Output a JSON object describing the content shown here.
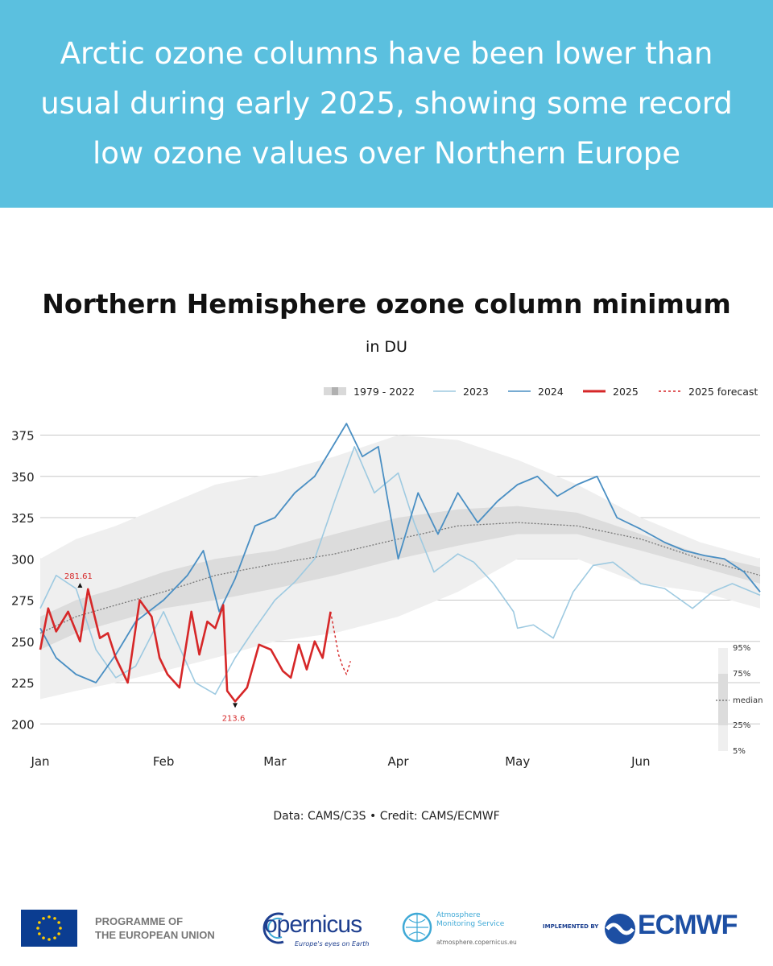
{
  "header": {
    "headline": "Arctic ozone columns have been lower than usual during early 2025, showing some record low ozone values over Northern Europe"
  },
  "chart_data": {
    "type": "line",
    "title": "Northern Hemisphere ozone column minimum",
    "subtitle": "in DU",
    "x_tick_labels": [
      "Jan",
      "Feb",
      "Mar",
      "Apr",
      "May",
      "Jun"
    ],
    "x_tick_days": [
      1,
      32,
      60,
      91,
      121,
      152
    ],
    "xlim": [
      1,
      182
    ],
    "y_ticks": [
      200,
      225,
      250,
      275,
      300,
      325,
      350,
      375
    ],
    "ylim": [
      185,
      385
    ],
    "grid": true,
    "legend_position": "top-right",
    "legend": [
      {
        "label": "1979 - 2022",
        "style": "band",
        "color": "#d9d9d9"
      },
      {
        "label": "2023",
        "style": "line",
        "color": "#9ecae1"
      },
      {
        "label": "2024",
        "style": "line",
        "color": "#4a8fc3"
      },
      {
        "label": "2025",
        "style": "line-bold",
        "color": "#d62728"
      },
      {
        "label": "2025 forecast",
        "style": "dashed",
        "color": "#d62728"
      }
    ],
    "climatology": {
      "name": "1979 - 2022",
      "x": [
        1,
        10,
        20,
        32,
        45,
        60,
        75,
        91,
        106,
        121,
        136,
        152,
        167,
        182
      ],
      "p5": [
        215,
        220,
        225,
        232,
        240,
        250,
        255,
        265,
        280,
        300,
        300,
        285,
        280,
        270
      ],
      "p25": [
        245,
        255,
        262,
        270,
        275,
        282,
        290,
        300,
        308,
        315,
        315,
        305,
        295,
        285
      ],
      "median": [
        255,
        265,
        272,
        280,
        290,
        297,
        303,
        312,
        320,
        322,
        320,
        312,
        300,
        290
      ],
      "p75": [
        265,
        275,
        282,
        292,
        300,
        305,
        315,
        325,
        330,
        332,
        328,
        315,
        303,
        295
      ],
      "p95": [
        300,
        312,
        320,
        332,
        345,
        352,
        362,
        375,
        372,
        360,
        345,
        325,
        310,
        300
      ]
    },
    "series": [
      {
        "name": "2023",
        "color": "#9ecae1",
        "x": [
          1,
          5,
          10,
          15,
          20,
          25,
          32,
          40,
          45,
          50,
          55,
          60,
          65,
          70,
          75,
          80,
          85,
          91,
          95,
          100,
          106,
          110,
          115,
          120,
          121,
          125,
          130,
          135,
          140,
          145,
          152,
          158,
          165,
          170,
          175,
          182
        ],
        "y": [
          270,
          290,
          282,
          245,
          228,
          235,
          268,
          225,
          218,
          240,
          258,
          275,
          286,
          300,
          335,
          368,
          340,
          352,
          322,
          292,
          303,
          298,
          285,
          268,
          258,
          260,
          252,
          280,
          296,
          298,
          285,
          282,
          270,
          280,
          285,
          278
        ]
      },
      {
        "name": "2024",
        "color": "#4a8fc3",
        "x": [
          1,
          5,
          10,
          15,
          20,
          25,
          32,
          38,
          42,
          46,
          50,
          55,
          60,
          65,
          70,
          75,
          78,
          82,
          86,
          91,
          96,
          101,
          106,
          111,
          116,
          121,
          126,
          131,
          136,
          141,
          146,
          152,
          158,
          163,
          168,
          173,
          178,
          182
        ],
        "y": [
          258,
          240,
          230,
          225,
          242,
          262,
          275,
          290,
          305,
          268,
          288,
          320,
          325,
          340,
          350,
          370,
          382,
          362,
          368,
          300,
          340,
          315,
          340,
          322,
          335,
          345,
          350,
          338,
          345,
          350,
          325,
          318,
          310,
          305,
          302,
          300,
          292,
          280
        ]
      },
      {
        "name": "2025",
        "color": "#d62728",
        "x": [
          1,
          3,
          5,
          8,
          11,
          13,
          16,
          18,
          20,
          23,
          26,
          29,
          31,
          33,
          36,
          39,
          41,
          43,
          45,
          47,
          48,
          50,
          53,
          56,
          59,
          62,
          64,
          66,
          68,
          70,
          72,
          74
        ],
        "y": [
          245,
          270,
          256,
          268,
          250,
          281.6,
          252,
          255,
          240,
          225,
          275,
          265,
          240,
          230,
          222,
          268,
          242,
          262,
          258,
          272,
          220,
          213.6,
          222,
          248,
          245,
          232,
          228,
          248,
          233,
          250,
          240,
          268
        ]
      },
      {
        "name": "2025 forecast",
        "color": "#d62728",
        "x": [
          74,
          75,
          76,
          77,
          78,
          79
        ],
        "y": [
          268,
          255,
          242,
          235,
          230,
          238
        ]
      }
    ],
    "annotations": [
      {
        "label": "281.61",
        "x": 11,
        "y": 281.6,
        "color": "#d62728"
      },
      {
        "label": "213.6",
        "x": 50,
        "y": 213.6,
        "color": "#d62728"
      }
    ],
    "percentile_key": {
      "labels": [
        "95%",
        "75%",
        "median",
        "25%",
        "5%"
      ]
    },
    "source": "Data: CAMS/C3S • Credit: CAMS/ECMWF"
  },
  "footer": {
    "eu_label_line1": "PROGRAMME OF",
    "eu_label_line2": "THE EUROPEAN UNION",
    "copernicus_word": "opernicus",
    "copernicus_tagline": "Europe's eyes on Earth",
    "ams_line1": "Atmosphere",
    "ams_line2": "Monitoring Service",
    "ams_url": "atmosphere.copernicus.eu",
    "implemented_by": "IMPLEMENTED BY",
    "ecmwf_word": "ECMWF"
  }
}
